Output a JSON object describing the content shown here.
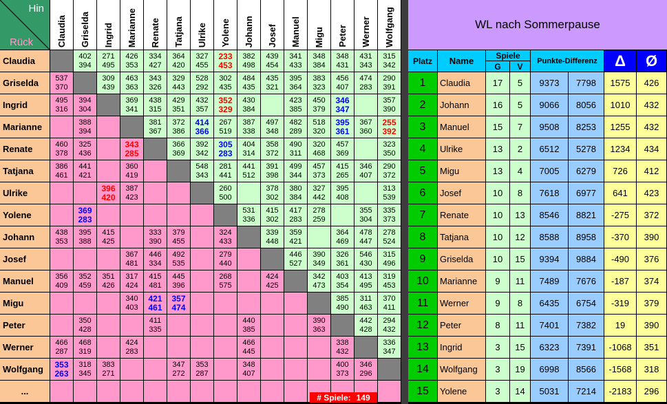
{
  "corner": {
    "hin": "Hin",
    "rueck": "Rück"
  },
  "players": [
    "Claudia",
    "Griselda",
    "Ingrid",
    "Marianne",
    "Renate",
    "Tatjana",
    "Ulrike",
    "Yolene",
    "Johann",
    "Josef",
    "Manuel",
    "Migu",
    "Peter",
    "Werner",
    "Wolfgang"
  ],
  "more_row": "...",
  "grid": [
    [
      null,
      [
        402,
        394
      ],
      [
        271,
        495
      ],
      [
        426,
        353
      ],
      [
        334,
        427
      ],
      [
        364,
        420
      ],
      [
        327,
        455
      ],
      [
        233,
        453
      ],
      [
        382,
        498
      ],
      [
        439,
        454
      ],
      [
        341,
        433
      ],
      [
        348,
        384
      ],
      [
        348,
        431
      ],
      [
        431,
        343
      ],
      [
        315,
        342
      ]
    ],
    [
      [
        537,
        370
      ],
      null,
      [
        309,
        439
      ],
      [
        463,
        363
      ],
      [
        343,
        326
      ],
      [
        329,
        443
      ],
      [
        528,
        292
      ],
      [
        302,
        435
      ],
      [
        484,
        435
      ],
      [
        435,
        321
      ],
      [
        395,
        364
      ],
      [
        383,
        323
      ],
      [
        456,
        407
      ],
      [
        474,
        283
      ],
      [
        290,
        391
      ]
    ],
    [
      [
        495,
        316
      ],
      [
        394,
        304
      ],
      null,
      [
        369,
        341
      ],
      [
        438,
        315
      ],
      [
        429,
        351
      ],
      [
        432,
        357
      ],
      [
        352,
        329
      ],
      [
        430,
        384
      ],
      null,
      [
        423,
        385
      ],
      [
        450,
        379
      ],
      [
        346,
        347
      ],
      null,
      [
        357,
        390
      ]
    ],
    [
      null,
      [
        388,
        394
      ],
      null,
      null,
      [
        381,
        367
      ],
      [
        372,
        386
      ],
      [
        414,
        366
      ],
      [
        267,
        519
      ],
      [
        387,
        338
      ],
      [
        497,
        348
      ],
      [
        482,
        289
      ],
      [
        518,
        320
      ],
      [
        395,
        361
      ],
      [
        367,
        360
      ],
      [
        255,
        392
      ]
    ],
    [
      [
        460,
        378
      ],
      [
        325,
        436
      ],
      null,
      [
        343,
        285
      ],
      null,
      [
        366,
        369
      ],
      [
        392,
        342
      ],
      [
        305,
        283
      ],
      [
        404,
        314
      ],
      [
        358,
        372
      ],
      [
        490,
        311
      ],
      [
        320,
        468
      ],
      [
        457,
        369
      ],
      null,
      [
        323,
        350
      ]
    ],
    [
      [
        386,
        461
      ],
      [
        441,
        421
      ],
      null,
      [
        360,
        419
      ],
      null,
      null,
      [
        548,
        343
      ],
      [
        281,
        441
      ],
      [
        441,
        512
      ],
      [
        391,
        398
      ],
      [
        499,
        344
      ],
      [
        457,
        373
      ],
      [
        415,
        265
      ],
      [
        346,
        407
      ],
      [
        290,
        372
      ]
    ],
    [
      null,
      null,
      [
        396,
        420
      ],
      [
        387,
        423
      ],
      null,
      null,
      null,
      [
        260,
        500
      ],
      null,
      [
        378,
        302
      ],
      [
        380,
        384
      ],
      [
        327,
        442
      ],
      [
        395,
        408
      ],
      null,
      [
        313,
        539
      ]
    ],
    [
      null,
      [
        369,
        283
      ],
      null,
      null,
      null,
      null,
      null,
      null,
      [
        531,
        336
      ],
      [
        415,
        302
      ],
      [
        417,
        283
      ],
      [
        278,
        259
      ],
      null,
      [
        355,
        304
      ],
      [
        335,
        373
      ]
    ],
    [
      [
        438,
        353
      ],
      [
        395,
        388
      ],
      [
        415,
        425
      ],
      null,
      [
        333,
        390
      ],
      [
        379,
        455
      ],
      null,
      [
        324,
        433
      ],
      null,
      [
        339,
        448
      ],
      [
        359,
        421
      ],
      null,
      [
        364,
        469
      ],
      [
        478,
        447
      ],
      [
        278,
        524
      ]
    ],
    [
      null,
      null,
      null,
      [
        367,
        481
      ],
      [
        446,
        334
      ],
      [
        492,
        535
      ],
      null,
      [
        279,
        440
      ],
      null,
      null,
      [
        446,
        527
      ],
      [
        390,
        349
      ],
      [
        326,
        361
      ],
      [
        546,
        430
      ],
      [
        315,
        496
      ]
    ],
    [
      [
        356,
        409
      ],
      [
        352,
        459
      ],
      [
        351,
        426
      ],
      [
        317,
        424
      ],
      [
        415,
        481
      ],
      [
        445,
        396
      ],
      null,
      [
        268,
        575
      ],
      null,
      [
        424,
        425
      ],
      null,
      [
        342,
        473
      ],
      [
        403,
        354
      ],
      [
        413,
        495
      ],
      [
        319,
        453
      ]
    ],
    [
      null,
      null,
      null,
      [
        340,
        403
      ],
      [
        421,
        461
      ],
      [
        357,
        474
      ],
      null,
      null,
      null,
      null,
      null,
      null,
      [
        385,
        490
      ],
      [
        311,
        463
      ],
      [
        370,
        411
      ]
    ],
    [
      null,
      [
        350,
        428
      ],
      null,
      null,
      [
        411,
        335
      ],
      null,
      null,
      null,
      [
        440,
        385
      ],
      null,
      null,
      [
        390,
        363
      ],
      null,
      [
        442,
        428
      ],
      [
        294,
        432
      ]
    ],
    [
      [
        466,
        287
      ],
      [
        468,
        319
      ],
      null,
      [
        424,
        283
      ],
      null,
      null,
      null,
      null,
      [
        466,
        445
      ],
      null,
      null,
      null,
      [
        338,
        432
      ],
      null,
      [
        336,
        347
      ]
    ],
    [
      [
        353,
        263
      ],
      [
        318,
        345
      ],
      [
        383,
        271
      ],
      null,
      null,
      [
        347,
        272
      ],
      [
        353,
        287
      ],
      null,
      [
        348,
        407
      ],
      null,
      null,
      null,
      [
        400,
        373
      ],
      [
        346,
        296
      ],
      null
    ]
  ],
  "highlights": [
    {
      "row": 0,
      "col": 7,
      "color": "#ff0000"
    },
    {
      "row": 2,
      "col": 7,
      "color": "#ff0000"
    },
    {
      "row": 2,
      "col": 12,
      "color": "#0000ff"
    },
    {
      "row": 3,
      "col": 6,
      "color": "#0000ff"
    },
    {
      "row": 3,
      "col": 12,
      "color": "#0000ff"
    },
    {
      "row": 3,
      "col": 14,
      "color": "#ff0000"
    },
    {
      "row": 4,
      "col": 3,
      "color": "#ff0000"
    },
    {
      "row": 4,
      "col": 7,
      "color": "#0000ff"
    },
    {
      "row": 6,
      "col": 2,
      "color": "#ff0000"
    },
    {
      "row": 7,
      "col": 1,
      "color": "#0000ff"
    },
    {
      "row": 11,
      "col": 4,
      "color": "#0000ff"
    },
    {
      "row": 11,
      "col": 5,
      "color": "#0000ff"
    },
    {
      "row": 14,
      "col": 0,
      "color": "#0000ff"
    }
  ],
  "game_count": {
    "label": "# Spiele:",
    "value": 149
  },
  "standings": {
    "title": "WL nach Sommerpause",
    "headers": {
      "platz": "Platz",
      "name": "Name",
      "spiele": "Spiele",
      "g": "G",
      "v": "V",
      "punkte": "Punkte-Differenz",
      "delta": "Δ",
      "avg": "Ø"
    },
    "rows": [
      [
        1,
        "Claudia",
        17,
        5,
        9373,
        7798,
        1575,
        426
      ],
      [
        2,
        "Johann",
        16,
        5,
        9066,
        8056,
        1010,
        432
      ],
      [
        3,
        "Manuel",
        15,
        7,
        9508,
        8253,
        1255,
        432
      ],
      [
        4,
        "Ulrike",
        13,
        2,
        6512,
        5278,
        1234,
        434
      ],
      [
        5,
        "Migu",
        13,
        4,
        7005,
        6279,
        726,
        412
      ],
      [
        6,
        "Josef",
        10,
        8,
        7618,
        6977,
        641,
        423
      ],
      [
        7,
        "Renate",
        10,
        13,
        8546,
        8821,
        -275,
        372
      ],
      [
        8,
        "Tatjana",
        10,
        12,
        8588,
        8958,
        -370,
        390
      ],
      [
        9,
        "Griselda",
        10,
        15,
        9394,
        9884,
        -490,
        376
      ],
      [
        10,
        "Marianne",
        9,
        11,
        7489,
        7676,
        -187,
        374
      ],
      [
        11,
        "Werner",
        9,
        8,
        6435,
        6754,
        -319,
        379
      ],
      [
        12,
        "Peter",
        8,
        11,
        7401,
        7382,
        19,
        390
      ],
      [
        13,
        "Ingrid",
        3,
        15,
        6323,
        7391,
        -1068,
        351
      ],
      [
        14,
        "Wolfgang",
        3,
        19,
        6998,
        8566,
        -1568,
        318
      ],
      [
        15,
        "Yolene",
        3,
        14,
        5031,
        7214,
        -2183,
        296
      ]
    ]
  }
}
